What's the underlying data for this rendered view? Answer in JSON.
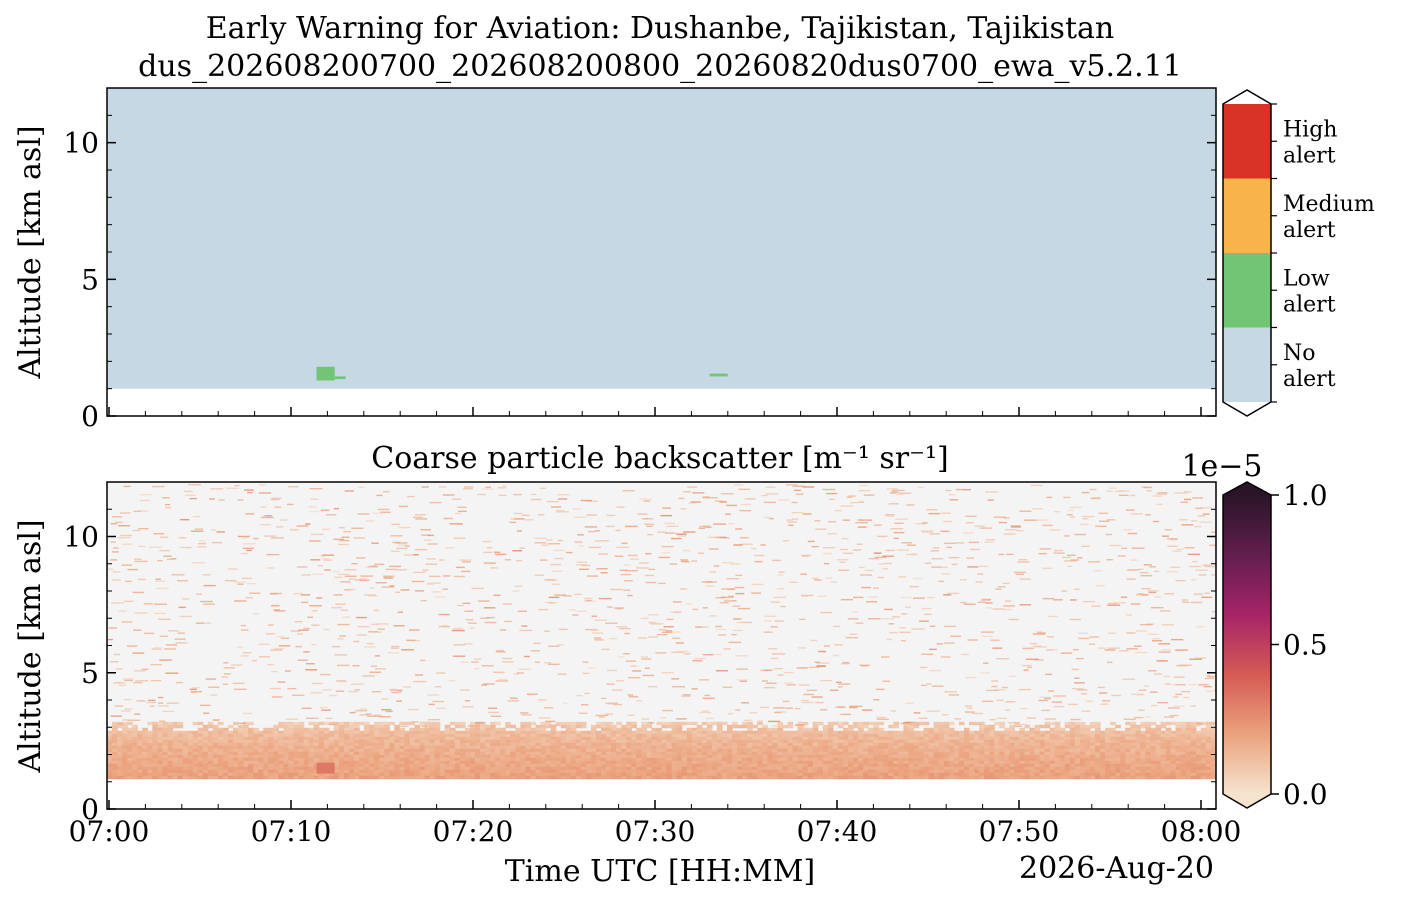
{
  "figure": {
    "title_line1": "Early Warning for Aviation: Dushanbe, Tajikistan, Tajikistan",
    "title_line2": "dus_202608200700_202608200800_20260820dus0700_ewa_v5.2.11",
    "date_label": "2026-Aug-20"
  },
  "chart_data": [
    {
      "type": "heatmap",
      "name": "alert-panel",
      "ylabel": "Altitude [km asl]",
      "xlim": [
        "07:00",
        "08:00"
      ],
      "ylim": [
        0,
        12
      ],
      "yticks": [
        "0",
        "5",
        "10"
      ],
      "data_bottom_km": 1.0,
      "background_category": "No alert",
      "patches": [
        {
          "category": "Low alert",
          "t_start_min": 11.4,
          "t_end_min": 12.4,
          "alt_min_km": 1.3,
          "alt_max_km": 1.8
        },
        {
          "category": "Low alert",
          "t_start_min": 12.4,
          "t_end_min": 13.0,
          "alt_min_km": 1.35,
          "alt_max_km": 1.45
        },
        {
          "category": "Low alert",
          "t_start_min": 33.0,
          "t_end_min": 34.0,
          "alt_min_km": 1.45,
          "alt_max_km": 1.55
        }
      ],
      "colorbar": {
        "categories": [
          {
            "label_l1": "No",
            "label_l2": "alert",
            "color": "#c5d8e4"
          },
          {
            "label_l1": "Low",
            "label_l2": "alert",
            "color": "#71c574"
          },
          {
            "label_l1": "Medium",
            "label_l2": "alert",
            "color": "#f7b44a"
          },
          {
            "label_l1": "High",
            "label_l2": "alert",
            "color": "#d93227"
          }
        ]
      }
    },
    {
      "type": "heatmap",
      "name": "backscatter-panel",
      "title": "Coarse particle backscatter [m⁻¹ sr⁻¹]",
      "ylabel": "Altitude [km asl]",
      "xlabel": "Time UTC [HH:MM]",
      "xticks": [
        "07:00",
        "07:10",
        "07:20",
        "07:30",
        "07:40",
        "07:50",
        "08:00"
      ],
      "yticks": [
        "0",
        "5",
        "10"
      ],
      "ylim": [
        0,
        12
      ],
      "data_bottom_km": 1.2,
      "layer_top_km": 3.2,
      "layer_peak_value": 0.2,
      "background_value": 0.0,
      "colorbar": {
        "offset_label": "1e−5",
        "ticks": [
          "0.0",
          "0.5",
          "1.0"
        ],
        "vmin": 0.0,
        "vmax": 1.0
      }
    }
  ]
}
